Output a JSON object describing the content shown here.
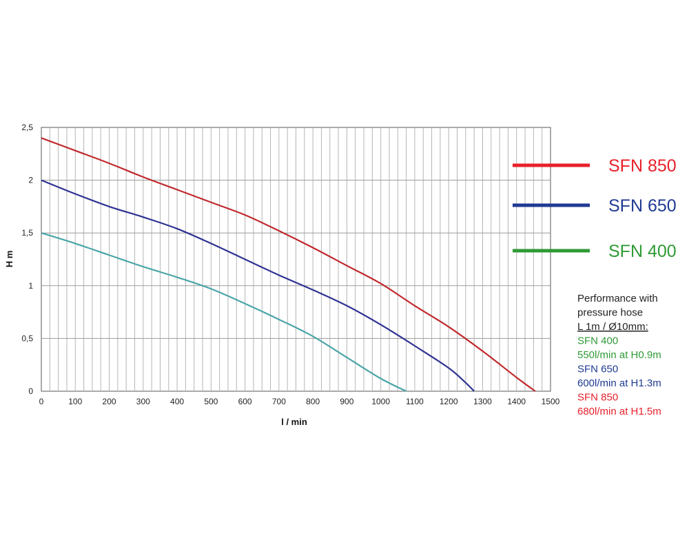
{
  "chart_data": {
    "type": "line",
    "xlabel": "l / min",
    "ylabel": "H m",
    "xlim": [
      0,
      1500
    ],
    "ylim": [
      0,
      2.5
    ],
    "x_ticks": [
      "0",
      "100",
      "200",
      "300",
      "400",
      "500",
      "600",
      "700",
      "800",
      "900",
      "1000",
      "1100",
      "1200",
      "1300",
      "1400",
      "1500"
    ],
    "y_ticks": [
      "0",
      "0,5",
      "1",
      "1,5",
      "2",
      "2,5"
    ],
    "grid": true,
    "legend_position": "right",
    "series": [
      {
        "name": "SFN 850",
        "color": "#e8202a",
        "line_color": "#c0282d",
        "x": [
          0,
          100,
          200,
          300,
          400,
          500,
          600,
          700,
          800,
          900,
          1000,
          1100,
          1200,
          1300,
          1400,
          1455
        ],
        "y": [
          2.4,
          2.28,
          2.16,
          2.03,
          1.91,
          1.79,
          1.67,
          1.52,
          1.36,
          1.19,
          1.02,
          0.81,
          0.61,
          0.38,
          0.13,
          0
        ]
      },
      {
        "name": "SFN 650",
        "color": "#1f3a93",
        "line_color": "#2e3192",
        "x": [
          0,
          100,
          200,
          300,
          400,
          500,
          600,
          700,
          800,
          900,
          1000,
          1100,
          1200,
          1250,
          1275
        ],
        "y": [
          2.0,
          1.87,
          1.75,
          1.65,
          1.54,
          1.4,
          1.25,
          1.1,
          0.96,
          0.81,
          0.63,
          0.43,
          0.22,
          0.08,
          0
        ]
      },
      {
        "name": "SFN 400",
        "color": "#2e9a35",
        "line_color": "#4aa5a8",
        "x": [
          0,
          100,
          200,
          300,
          400,
          500,
          600,
          700,
          800,
          900,
          1000,
          1075
        ],
        "y": [
          1.5,
          1.4,
          1.29,
          1.18,
          1.08,
          0.97,
          0.83,
          0.68,
          0.52,
          0.32,
          0.12,
          0
        ]
      }
    ]
  },
  "notes": {
    "heading": [
      "Performance with",
      "pressure hose"
    ],
    "hose_spec": "L 1m / Ø10mm:",
    "heading_color": "#222222",
    "entries": [
      {
        "model": "SFN 400",
        "performance": "550l/min at H0.9m",
        "color": "#2e9a35"
      },
      {
        "model": "SFN 650",
        "performance": "600l/min at H1.3m",
        "color": "#1f3a93"
      },
      {
        "model": "SFN 850",
        "performance": "680l/min at H1.5m",
        "color": "#e8202a"
      }
    ]
  }
}
